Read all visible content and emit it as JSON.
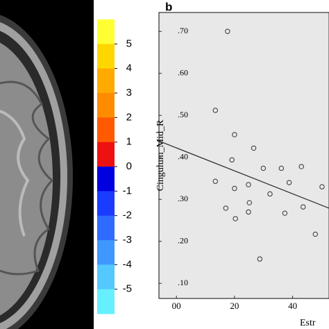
{
  "chart_data": [
    {
      "type": "colorbar",
      "colors": [
        "#ffff33",
        "#ffd700",
        "#ffaa00",
        "#ff8c00",
        "#ff5a00",
        "#ee1111",
        "#0000e0",
        "#1a3cff",
        "#2f6bff",
        "#3f97ff",
        "#55c8ff",
        "#66f0ff"
      ],
      "ylim": [
        -6,
        6
      ],
      "yticks": [
        5,
        4,
        3,
        2,
        1,
        0,
        -1,
        -2,
        -3,
        -4,
        -5
      ]
    },
    {
      "type": "scatter",
      "label": "b",
      "y_label": "Cingulum_Mid_R",
      "x_label": "Estr",
      "x": [
        17.6,
        13.4,
        20,
        26.6,
        19.1,
        13.4,
        24.8,
        20,
        29.9,
        36.1,
        43,
        32.2,
        38.8,
        50.1,
        17,
        25.1,
        24.8,
        20.3,
        37.3,
        43.6,
        47.8,
        28.7
      ],
      "values": [
        0.7,
        0.512,
        0.454,
        0.422,
        0.394,
        0.343,
        0.335,
        0.326,
        0.374,
        0.374,
        0.378,
        0.313,
        0.34,
        0.33,
        0.279,
        0.292,
        0.27,
        0.254,
        0.267,
        0.282,
        0.217,
        0.158
      ],
      "fit": {
        "x": [
          -6,
          52.5
        ],
        "values": [
          0.439,
          0.279
        ]
      },
      "xlim": [
        -6,
        52.5
      ],
      "ylim": [
        0.064,
        0.745
      ],
      "xticks": [
        {
          "value": 0,
          "label": "00"
        },
        20,
        40
      ],
      "yticks": [
        {
          "value": 0.7,
          "label": ".70"
        },
        {
          "value": 0.6,
          "label": ".60"
        },
        {
          "value": 0.5,
          "label": ".50"
        },
        {
          "value": 0.4,
          "label": ".40"
        },
        {
          "value": 0.3,
          "label": ".30"
        },
        {
          "value": 0.2,
          "label": ".20"
        },
        {
          "value": 0.1,
          "label": ".10"
        }
      ],
      "background": "#e8e8e8"
    }
  ]
}
